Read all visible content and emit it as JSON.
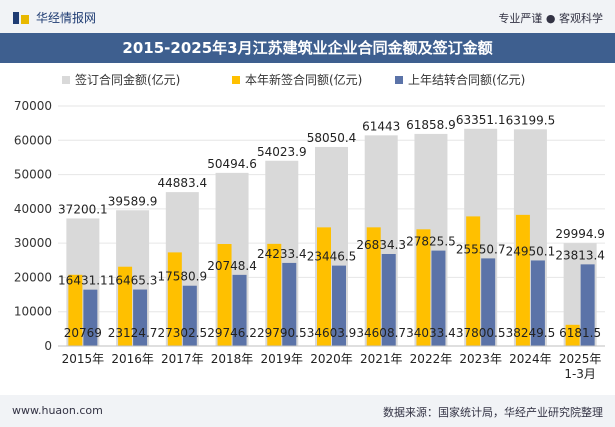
{
  "header": {
    "site_name": "华经情报网",
    "tagline": "专业严谨 ● 客观科学"
  },
  "footer": {
    "url": "www.huaon.com",
    "source": "数据来源：国家统计局，华经产业研究院整理"
  },
  "chart_data": {
    "type": "bar",
    "title": "2015-2025年3月江苏建筑业企业合同金额及签订金额",
    "categories": [
      "2015年",
      "2016年",
      "2017年",
      "2018年",
      "2019年",
      "2020年",
      "2021年",
      "2022年",
      "2023年",
      "2024年",
      "2025年\n1-3月"
    ],
    "ylim": [
      0,
      70000
    ],
    "yticks": [
      0,
      10000,
      20000,
      30000,
      40000,
      50000,
      60000,
      70000
    ],
    "legend_position": "top",
    "series": [
      {
        "name": "签订合同金额(亿元)",
        "color": "#d9d9d9",
        "values": [
          37200.1,
          39589.9,
          44883.4,
          50494.6,
          54023.9,
          58050.4,
          61443,
          61858.9,
          63351.1,
          63199.5,
          29994.9
        ],
        "labels": [
          "37200.1",
          "39589.9",
          "44883.4",
          "50494.6",
          "54023.9",
          "58050.4",
          "61443",
          "61858.9",
          "63351.1",
          "63199.5",
          "29994.9"
        ]
      },
      {
        "name": "本年新签合同额(亿元)",
        "color": "#ffc000",
        "values": [
          20769,
          23124.7,
          27302.5,
          29746.2,
          29790.5,
          34603.9,
          34608.7,
          34033.4,
          37800.5,
          38249.5,
          6181.5
        ],
        "labels": [
          "20769",
          "23124.7",
          "27302.5",
          "29746.2",
          "29790.5",
          "34603.9",
          "34608.7",
          "34033.4",
          "37800.5",
          "38249.5",
          "6181.5"
        ]
      },
      {
        "name": "上年结转合同额(亿元)",
        "color": "#5b73a8",
        "values": [
          16431.1,
          16465.3,
          17580.9,
          20748.4,
          24233.4,
          23446.5,
          26834.3,
          27825.5,
          25550.7,
          24950.1,
          23813.4
        ],
        "labels": [
          "16431.1",
          "16465.3",
          "17580.9",
          "20748.4",
          "24233.4",
          "23446.5",
          "26834.3",
          "27825.5",
          "25550.7",
          "24950.1",
          "23813.4"
        ]
      }
    ]
  }
}
